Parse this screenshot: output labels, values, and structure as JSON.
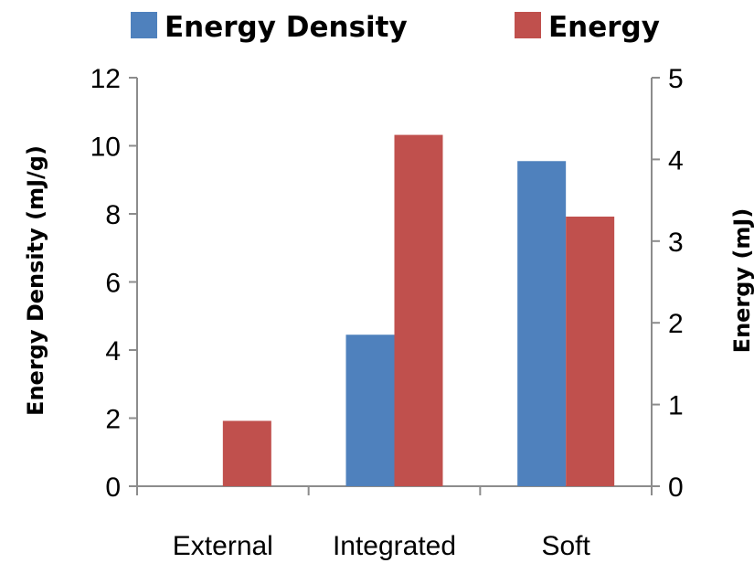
{
  "chart_data": {
    "type": "bar",
    "categories": [
      "External",
      "Integrated",
      "Soft"
    ],
    "series": [
      {
        "name": "Energy Density",
        "axis": "left",
        "color": "#4f81bd",
        "values": [
          0,
          4.45,
          9.55
        ]
      },
      {
        "name": "Energy",
        "axis": "right",
        "color": "#c0504d",
        "values": [
          0.8,
          4.3,
          3.3
        ]
      }
    ],
    "ylabel": "Energy Density (mJ/g)",
    "ylabel_right": "Energy (mJ)",
    "ylim": [
      0,
      12
    ],
    "ylim_right": [
      0,
      5
    ],
    "yticks": [
      0,
      2,
      4,
      6,
      8,
      10,
      12
    ],
    "yticks_right": [
      0,
      1,
      2,
      3,
      4,
      5
    ],
    "legend_position": "top",
    "grid": false
  }
}
